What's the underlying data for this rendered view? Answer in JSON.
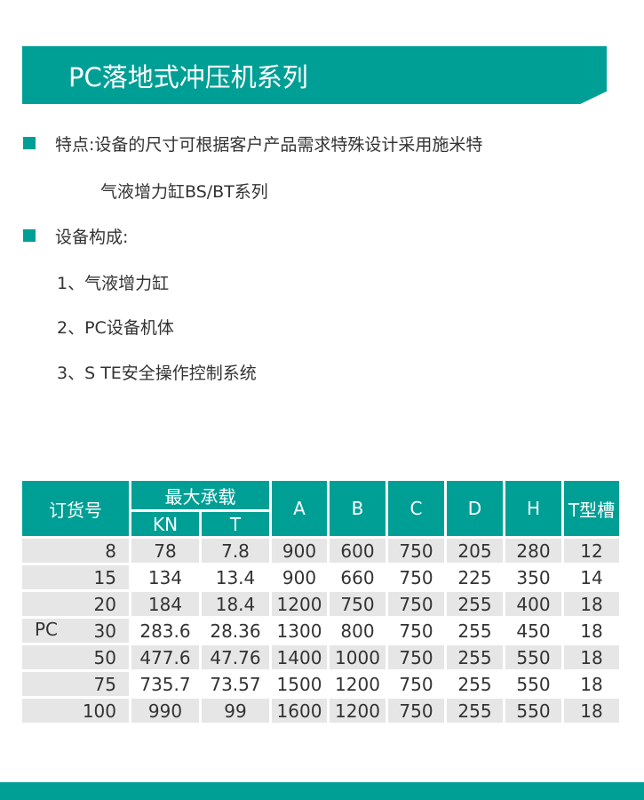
{
  "title": "PC落地式冲压机系列",
  "features_label": "特点:设备的尺寸可根据客户产品需求特殊设计采用施米特",
  "features_cont": "气液增力缸BS/BT系列",
  "composition_label": "设备构成:",
  "composition_items": [
    "1、气液增力缸",
    "2、PC设备机体",
    "3、S TE安全操作控制系统"
  ],
  "table": {
    "headers": {
      "order": "订货号",
      "max_load": "最大承载",
      "kn": "KN",
      "t": "T",
      "a": "A",
      "b": "B",
      "c": "C",
      "d": "D",
      "h": "H",
      "tslot": "T型槽"
    },
    "series": "PC",
    "rows": [
      [
        "8",
        "78",
        "7.8",
        "900",
        "600",
        "750",
        "205",
        "280",
        "12"
      ],
      [
        "15",
        "134",
        "13.4",
        "900",
        "660",
        "750",
        "225",
        "350",
        "14"
      ],
      [
        "20",
        "184",
        "18.4",
        "1200",
        "750",
        "750",
        "255",
        "400",
        "18"
      ],
      [
        "30",
        "283.6",
        "28.36",
        "1300",
        "800",
        "750",
        "255",
        "450",
        "18"
      ],
      [
        "50",
        "477.6",
        "47.76",
        "1400",
        "1000",
        "750",
        "255",
        "550",
        "18"
      ],
      [
        "75",
        "735.7",
        "73.57",
        "1500",
        "1200",
        "750",
        "255",
        "550",
        "18"
      ],
      [
        "100",
        "990",
        "99",
        "1600",
        "1200",
        "750",
        "255",
        "550",
        "18"
      ]
    ]
  },
  "colors": {
    "accent": "#009f95",
    "row_gray": "#e6e6e6"
  }
}
